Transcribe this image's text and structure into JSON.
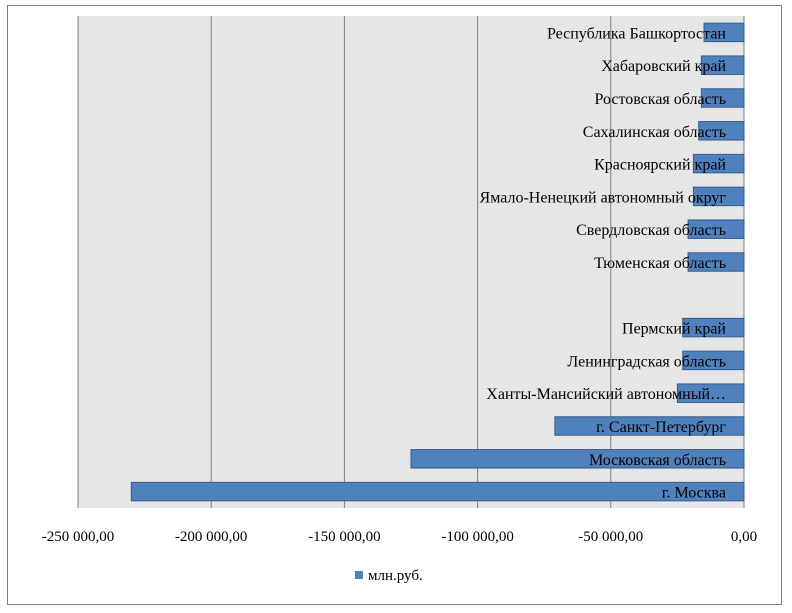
{
  "chart_data": {
    "type": "bar",
    "orientation": "horizontal",
    "title": "",
    "xlabel": "",
    "ylabel": "",
    "xlim": [
      -250000,
      0
    ],
    "grid": true,
    "legend_position": "bottom",
    "categories": [
      "Республика Башкортостан",
      "Хабаровский край",
      "Ростовская область",
      "Сахалинская  область",
      "Красноярский край",
      "Ямало-Ненецкий автономный округ",
      "Свердловская  область",
      "Тюменская область",
      "",
      "Пермский край",
      "Ленинградская область",
      "Ханты-Мансийский  автономный…",
      "г. Санкт-Петербург",
      "Московская область",
      "г. Москва"
    ],
    "series": [
      {
        "name": "млн.руб.",
        "color": "#4f81bd",
        "values": [
          -15000,
          -16000,
          -16000,
          -17000,
          -19000,
          -19000,
          -21000,
          -21000,
          null,
          -23000,
          -23000,
          -25000,
          -71000,
          -125000,
          -230000
        ]
      }
    ],
    "tick_values": [
      -250000,
      -200000,
      -150000,
      -100000,
      -50000,
      0
    ],
    "tick_labels": [
      "-250 000,00",
      "-200 000,00",
      "-150 000,00",
      "-100 000,00",
      "-50 000,00",
      "0,00"
    ]
  },
  "colors": {
    "plot_bg": "#e6e6e6",
    "bar_fill": "#4f81bd",
    "bar_stroke": "#385d8a",
    "grid": "#808080"
  }
}
